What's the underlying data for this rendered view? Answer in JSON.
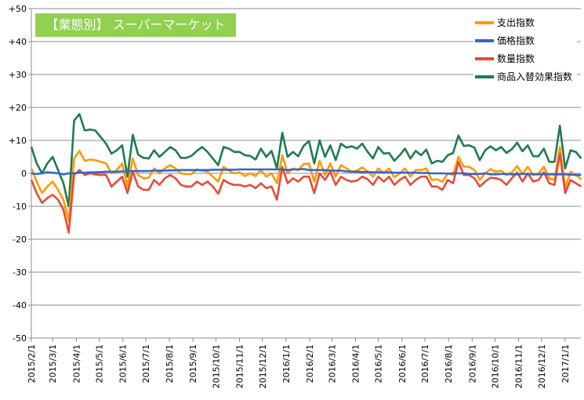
{
  "chart_data": {
    "type": "line",
    "title": "【業態別】 スーパーマーケット",
    "xlabel": "",
    "ylabel": "",
    "ylim": [
      -50,
      50
    ],
    "y_ticks": [
      "+50",
      "+40",
      "+30",
      "+20",
      "+10",
      "0",
      "-10",
      "-20",
      "-30",
      "-40",
      "-50"
    ],
    "y_tick_values": [
      50,
      40,
      30,
      20,
      10,
      0,
      -10,
      -20,
      -30,
      -40,
      -50
    ],
    "x_start": "2015/2/1",
    "x_interval": "weekly",
    "x_tick_labels": [
      "2015/2/1",
      "2015/3/1",
      "2015/4/1",
      "2015/5/1",
      "2015/6/1",
      "2015/7/1",
      "2015/8/1",
      "2015/9/1",
      "2015/10/1",
      "2015/11/1",
      "2015/12/1",
      "2016/1/1",
      "2016/2/1",
      "2016/3/1",
      "2016/4/1",
      "2016/5/1",
      "2016/6/1",
      "2016/7/1",
      "2016/8/1",
      "2016/9/1",
      "2016/10/1",
      "2016/11/1",
      "2016/12/1",
      "2017/1/1"
    ],
    "grid": true,
    "legend_position": "top-right",
    "series": [
      {
        "name": "支出指数",
        "color": "#ff9900",
        "values": [
          1.5,
          -2.5,
          -6,
          -4,
          -2.5,
          -5,
          -8,
          -14.5,
          4.5,
          6.8,
          3.8,
          4.2,
          4,
          3.5,
          3,
          0,
          1,
          3,
          -4,
          4.5,
          -0.5,
          -1.5,
          -1.3,
          1.5,
          0,
          1.5,
          2.5,
          1.5,
          0,
          -0.2,
          -0.2,
          1.2,
          0.8,
          0.5,
          -1,
          -2.5,
          2,
          0.8,
          0,
          0.3,
          -0.8,
          0,
          -0.8,
          1,
          -1,
          0,
          -3,
          5.5,
          0,
          1.5,
          1,
          2.8,
          3,
          -2.5,
          3.8,
          -0.5,
          3,
          -1,
          2.5,
          1.5,
          0.5,
          0.8,
          1.8,
          0.5,
          -1,
          1.5,
          0,
          1.5,
          -1.2,
          0,
          1.5,
          -1,
          1,
          1,
          1.5,
          -2,
          -1.8,
          -2.5,
          0,
          -0.5,
          5,
          2,
          2,
          1,
          -2,
          0,
          1.3,
          0.5,
          0.8,
          -0.5,
          0.3,
          2.2,
          -0.2,
          2,
          -0.5,
          0,
          2,
          -1.5,
          -2,
          8,
          -4.5,
          0.5,
          -0.5,
          -1.8
        ]
      },
      {
        "name": "価格指数",
        "color": "#3366cc",
        "values": [
          0,
          -0.2,
          0,
          0.3,
          0.2,
          0,
          -0.3,
          0,
          0,
          0.2,
          0.2,
          0.3,
          0.3,
          0.4,
          0.5,
          0.5,
          0.5,
          0.6,
          0.6,
          0.7,
          0.7,
          0.7,
          0.7,
          0.8,
          0.8,
          0.8,
          0.9,
          0.9,
          1,
          1,
          1,
          1,
          1,
          1,
          1.1,
          1.1,
          1.1,
          1.1,
          1.1,
          1.2,
          1.2,
          1.2,
          1.2,
          1.2,
          1.2,
          1.2,
          1.2,
          1.2,
          1,
          1.2,
          1.2,
          1.3,
          1,
          1,
          1,
          1,
          0.8,
          0.8,
          0.8,
          0.6,
          0.5,
          0.5,
          0.4,
          0.4,
          0.3,
          0.3,
          0.3,
          0.3,
          0.2,
          0.2,
          0.2,
          0.2,
          0.2,
          0.1,
          0.1,
          0,
          0,
          0,
          -0.1,
          0,
          0,
          0,
          -0.2,
          -0.2,
          -0.2,
          0,
          -0.3,
          -0.3,
          -0.2,
          -0.2,
          -0.3,
          -0.3,
          -0.2,
          -0.2,
          -0.3,
          -0.3,
          -0.2,
          -0.3,
          -0.3,
          -0.3,
          -0.3,
          -0.4,
          -0.5,
          -0.5
        ]
      },
      {
        "name": "数量指数",
        "color": "#e84a37",
        "values": [
          -2,
          -6,
          -9,
          -7.5,
          -6.5,
          -8,
          -11,
          -18,
          -0.5,
          1,
          -0.5,
          0,
          -0.3,
          -0.5,
          -0.5,
          -4,
          -2.5,
          -1,
          -6,
          0.5,
          -4,
          -5,
          -5,
          -2,
          -3.5,
          -1.5,
          -0.5,
          -1.5,
          -3.5,
          -4,
          -4,
          -2.5,
          -3.5,
          -2.5,
          -4,
          -6.2,
          -2,
          -3,
          -3.5,
          -3.5,
          -4,
          -3.5,
          -4.5,
          -3,
          -4.5,
          -4,
          -8,
          2,
          -3,
          -1.5,
          -2.5,
          -1,
          -1,
          -6,
          0,
          -2,
          0.5,
          -3.5,
          -1,
          -2,
          -2.5,
          -2.2,
          -1,
          -1.8,
          -3.5,
          -1,
          -2.5,
          -1,
          -3.5,
          -2,
          -1,
          -3.5,
          -2,
          -1,
          -1,
          -4,
          -4,
          -5,
          -2,
          -3,
          3.5,
          -0.5,
          -0.5,
          -1.5,
          -4,
          -2.5,
          -1.3,
          -1.5,
          -2,
          -3.5,
          -1.5,
          0.3,
          -2.5,
          0,
          -2.5,
          -2,
          0.3,
          -3,
          -3.5,
          6,
          -6,
          -2,
          -3,
          -4
        ]
      },
      {
        "name": "商品入替効果指数",
        "color": "#1e7b4f",
        "values": [
          8,
          3,
          0,
          3,
          5,
          1,
          -3,
          -10,
          16,
          18,
          13,
          13.3,
          13,
          11,
          9,
          6,
          7,
          8.5,
          -1,
          11.7,
          5.7,
          4.7,
          4.5,
          7,
          5,
          6.5,
          8,
          7,
          4.7,
          4.7,
          5.3,
          6.8,
          8,
          6.5,
          4.5,
          2.5,
          8,
          7.5,
          6.5,
          6.5,
          5.5,
          5.3,
          4.2,
          7.5,
          5,
          6.8,
          1.5,
          12.3,
          5,
          6.5,
          5.2,
          8.3,
          9.8,
          3,
          10,
          5,
          8.5,
          4,
          9,
          7.8,
          8.2,
          7.5,
          9,
          6.5,
          4.5,
          8,
          6,
          6.2,
          3.8,
          5.5,
          7.5,
          4.5,
          6.8,
          5.5,
          7.2,
          3,
          3.8,
          3.5,
          5.5,
          6.2,
          11.5,
          8.3,
          8.5,
          7.8,
          4,
          7,
          8.2,
          7,
          8,
          6.2,
          7.3,
          9.3,
          6.7,
          8.5,
          5.2,
          5.2,
          7.5,
          3.5,
          3.5,
          14.5,
          1.5,
          7,
          6.5,
          4.5
        ]
      }
    ]
  }
}
